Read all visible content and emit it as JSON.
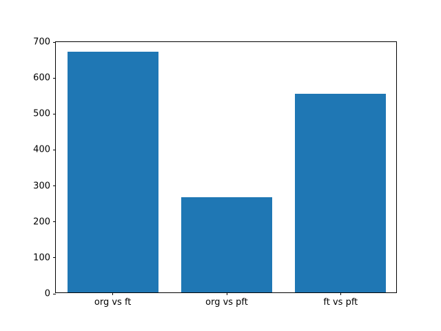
{
  "chart_data": {
    "type": "bar",
    "categories": [
      "org vs ft",
      "org vs pft",
      "ft vs pft"
    ],
    "values": [
      670,
      265,
      553
    ],
    "ylim": [
      0,
      700
    ],
    "yticks": [
      0,
      100,
      200,
      300,
      400,
      500,
      600,
      700
    ],
    "bar_color": "#1f77b4",
    "bar_width_ratio": 0.8,
    "grid": false,
    "legend": false,
    "frame_color": "#000000",
    "background_color": "#ffffff"
  }
}
